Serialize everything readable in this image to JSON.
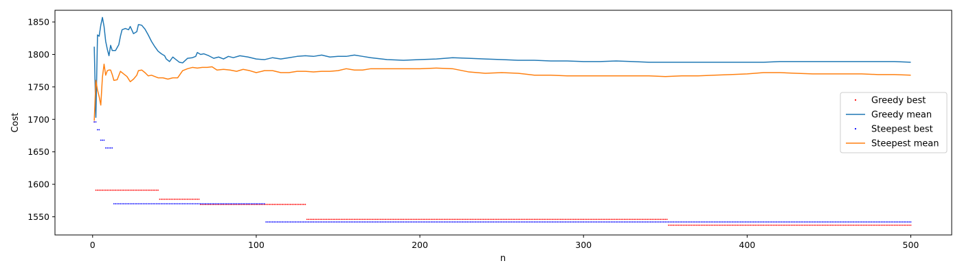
{
  "chart_data": {
    "type": "line",
    "title": "",
    "xlabel": "n",
    "ylabel": "Cost",
    "xlim": [
      -23,
      525
    ],
    "ylim": [
      1522,
      1868
    ],
    "xticks": [
      0,
      100,
      200,
      300,
      400,
      500
    ],
    "yticks": [
      1550,
      1600,
      1650,
      1700,
      1750,
      1800,
      1850
    ],
    "grid": false,
    "legend_placement": "center-right",
    "series": [
      {
        "name": "Greedy best",
        "kind": "dots",
        "color": "#ff0000",
        "steps": [
          {
            "from": 1,
            "to": 1,
            "value": 1696
          },
          {
            "from": 2,
            "to": 40,
            "value": 1591
          },
          {
            "from": 41,
            "to": 65,
            "value": 1577
          },
          {
            "from": 66,
            "to": 105,
            "value": 1569
          },
          {
            "from": 106,
            "to": 130,
            "value": 1569
          },
          {
            "from": 131,
            "to": 351,
            "value": 1546
          },
          {
            "from": 352,
            "to": 500,
            "value": 1537
          }
        ]
      },
      {
        "name": "Greedy mean",
        "kind": "line",
        "color": "#1f77b4",
        "points": [
          [
            1,
            1812
          ],
          [
            2,
            1703
          ],
          [
            3,
            1830
          ],
          [
            4,
            1828
          ],
          [
            5,
            1845
          ],
          [
            6,
            1857
          ],
          [
            7,
            1843
          ],
          [
            8,
            1820
          ],
          [
            9,
            1808
          ],
          [
            10,
            1798
          ],
          [
            11,
            1814
          ],
          [
            12,
            1806
          ],
          [
            14,
            1806
          ],
          [
            16,
            1815
          ],
          [
            17,
            1828
          ],
          [
            18,
            1838
          ],
          [
            20,
            1840
          ],
          [
            22,
            1838
          ],
          [
            23,
            1843
          ],
          [
            25,
            1832
          ],
          [
            27,
            1835
          ],
          [
            28,
            1846
          ],
          [
            30,
            1845
          ],
          [
            32,
            1839
          ],
          [
            34,
            1830
          ],
          [
            36,
            1820
          ],
          [
            38,
            1812
          ],
          [
            40,
            1805
          ],
          [
            42,
            1801
          ],
          [
            44,
            1798
          ],
          [
            45,
            1793
          ],
          [
            47,
            1789
          ],
          [
            49,
            1796
          ],
          [
            51,
            1792
          ],
          [
            53,
            1788
          ],
          [
            55,
            1787
          ],
          [
            58,
            1794
          ],
          [
            61,
            1795
          ],
          [
            63,
            1797
          ],
          [
            64,
            1803
          ],
          [
            66,
            1800
          ],
          [
            68,
            1801
          ],
          [
            71,
            1798
          ],
          [
            74,
            1794
          ],
          [
            77,
            1796
          ],
          [
            80,
            1793
          ],
          [
            83,
            1797
          ],
          [
            86,
            1795
          ],
          [
            90,
            1798
          ],
          [
            95,
            1796
          ],
          [
            100,
            1793
          ],
          [
            105,
            1792
          ],
          [
            110,
            1795
          ],
          [
            115,
            1793
          ],
          [
            120,
            1795
          ],
          [
            125,
            1797
          ],
          [
            130,
            1798
          ],
          [
            135,
            1797
          ],
          [
            140,
            1799
          ],
          [
            145,
            1796
          ],
          [
            150,
            1797
          ],
          [
            155,
            1797
          ],
          [
            160,
            1799
          ],
          [
            165,
            1797
          ],
          [
            170,
            1795
          ],
          [
            180,
            1792
          ],
          [
            190,
            1791
          ],
          [
            200,
            1792
          ],
          [
            210,
            1793
          ],
          [
            220,
            1795
          ],
          [
            230,
            1794
          ],
          [
            240,
            1793
          ],
          [
            250,
            1792
          ],
          [
            260,
            1791
          ],
          [
            270,
            1791
          ],
          [
            280,
            1790
          ],
          [
            290,
            1790
          ],
          [
            300,
            1789
          ],
          [
            310,
            1789
          ],
          [
            320,
            1790
          ],
          [
            330,
            1789
          ],
          [
            340,
            1788
          ],
          [
            350,
            1788
          ],
          [
            360,
            1788
          ],
          [
            370,
            1788
          ],
          [
            380,
            1788
          ],
          [
            390,
            1788
          ],
          [
            400,
            1788
          ],
          [
            410,
            1788
          ],
          [
            420,
            1789
          ],
          [
            430,
            1789
          ],
          [
            440,
            1789
          ],
          [
            450,
            1789
          ],
          [
            460,
            1789
          ],
          [
            470,
            1789
          ],
          [
            480,
            1789
          ],
          [
            490,
            1789
          ],
          [
            500,
            1788
          ]
        ]
      },
      {
        "name": "Steepest best",
        "kind": "dots",
        "color": "#0000ff",
        "steps": [
          {
            "from": 1,
            "to": 2,
            "value": 1696
          },
          {
            "from": 3,
            "to": 4,
            "value": 1684
          },
          {
            "from": 5,
            "to": 7,
            "value": 1668
          },
          {
            "from": 8,
            "to": 12,
            "value": 1656
          },
          {
            "from": 13,
            "to": 105,
            "value": 1570
          },
          {
            "from": 106,
            "to": 351,
            "value": 1542
          },
          {
            "from": 352,
            "to": 500,
            "value": 1542
          }
        ]
      },
      {
        "name": "Steepest mean",
        "kind": "line",
        "color": "#ff7f0e",
        "points": [
          [
            1,
            1698
          ],
          [
            2,
            1760
          ],
          [
            3,
            1745
          ],
          [
            4,
            1735
          ],
          [
            5,
            1722
          ],
          [
            6,
            1765
          ],
          [
            7,
            1785
          ],
          [
            8,
            1768
          ],
          [
            9,
            1775
          ],
          [
            10,
            1776
          ],
          [
            11,
            1776
          ],
          [
            12,
            1769
          ],
          [
            13,
            1760
          ],
          [
            15,
            1761
          ],
          [
            17,
            1774
          ],
          [
            19,
            1770
          ],
          [
            21,
            1766
          ],
          [
            23,
            1758
          ],
          [
            25,
            1762
          ],
          [
            27,
            1768
          ],
          [
            28,
            1775
          ],
          [
            30,
            1776
          ],
          [
            32,
            1772
          ],
          [
            34,
            1767
          ],
          [
            36,
            1768
          ],
          [
            38,
            1766
          ],
          [
            40,
            1764
          ],
          [
            43,
            1764
          ],
          [
            46,
            1762
          ],
          [
            49,
            1764
          ],
          [
            52,
            1764
          ],
          [
            55,
            1775
          ],
          [
            58,
            1778
          ],
          [
            61,
            1780
          ],
          [
            64,
            1779
          ],
          [
            67,
            1780
          ],
          [
            70,
            1780
          ],
          [
            73,
            1781
          ],
          [
            76,
            1776
          ],
          [
            80,
            1777
          ],
          [
            84,
            1776
          ],
          [
            88,
            1774
          ],
          [
            92,
            1777
          ],
          [
            96,
            1775
          ],
          [
            100,
            1772
          ],
          [
            105,
            1775
          ],
          [
            110,
            1775
          ],
          [
            115,
            1772
          ],
          [
            120,
            1772
          ],
          [
            125,
            1774
          ],
          [
            130,
            1774
          ],
          [
            135,
            1773
          ],
          [
            140,
            1774
          ],
          [
            145,
            1774
          ],
          [
            150,
            1775
          ],
          [
            155,
            1778
          ],
          [
            160,
            1776
          ],
          [
            165,
            1776
          ],
          [
            170,
            1778
          ],
          [
            180,
            1778
          ],
          [
            190,
            1778
          ],
          [
            200,
            1778
          ],
          [
            210,
            1779
          ],
          [
            220,
            1778
          ],
          [
            230,
            1773
          ],
          [
            240,
            1771
          ],
          [
            250,
            1772
          ],
          [
            260,
            1771
          ],
          [
            270,
            1768
          ],
          [
            280,
            1768
          ],
          [
            290,
            1767
          ],
          [
            300,
            1767
          ],
          [
            310,
            1767
          ],
          [
            320,
            1767
          ],
          [
            330,
            1767
          ],
          [
            340,
            1767
          ],
          [
            350,
            1766
          ],
          [
            360,
            1767
          ],
          [
            370,
            1767
          ],
          [
            380,
            1768
          ],
          [
            390,
            1769
          ],
          [
            400,
            1770
          ],
          [
            410,
            1772
          ],
          [
            420,
            1772
          ],
          [
            430,
            1771
          ],
          [
            440,
            1770
          ],
          [
            450,
            1770
          ],
          [
            460,
            1770
          ],
          [
            470,
            1770
          ],
          [
            480,
            1769
          ],
          [
            490,
            1769
          ],
          [
            500,
            1768
          ]
        ]
      }
    ]
  }
}
